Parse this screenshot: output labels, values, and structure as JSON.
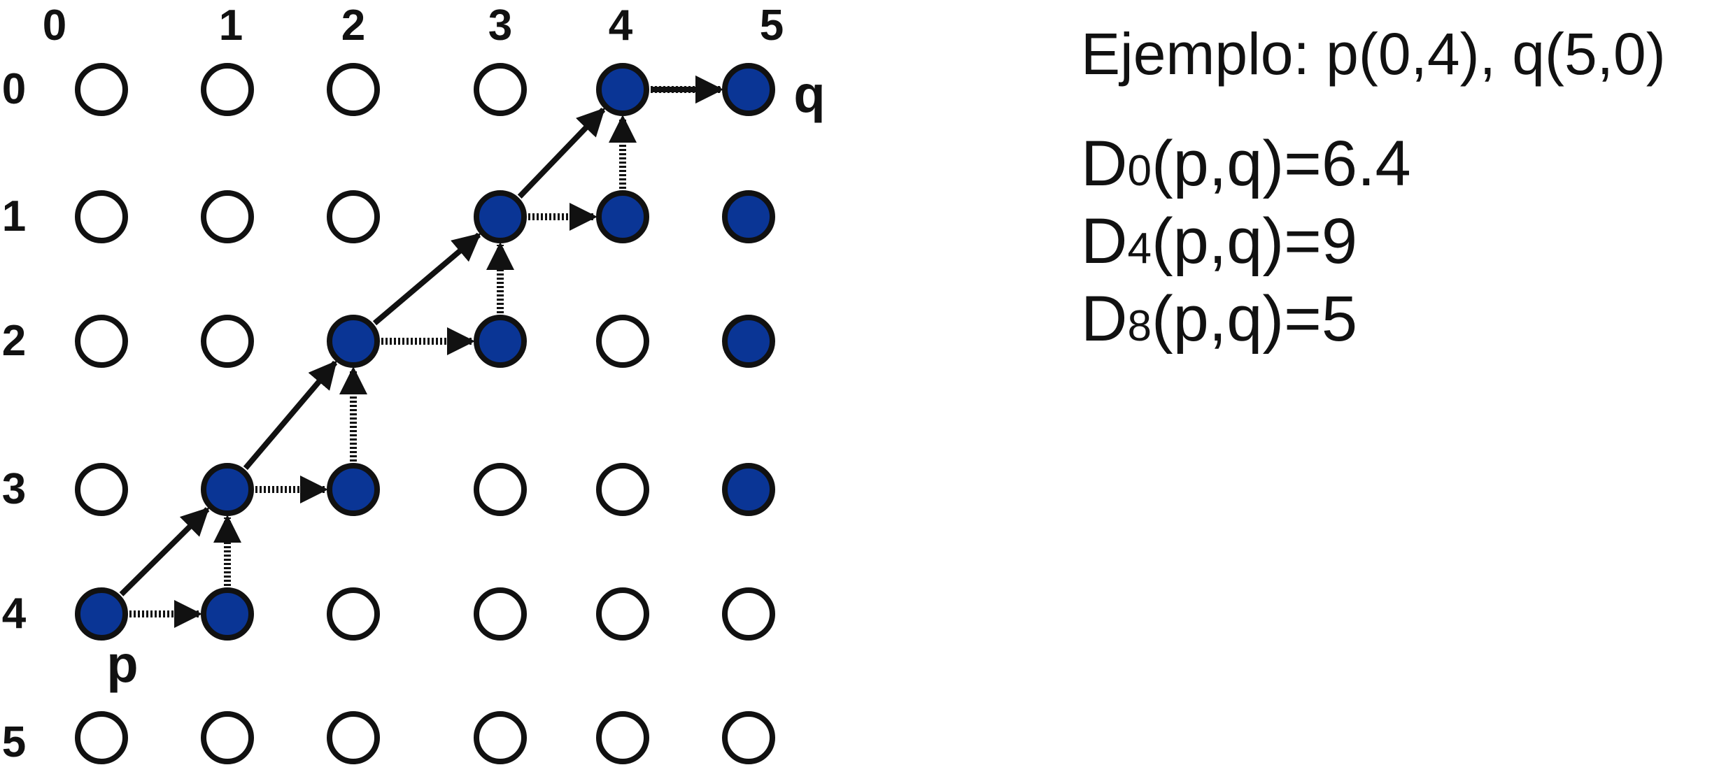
{
  "colors": {
    "filled": "#0a3595",
    "stroke": "#111111",
    "empty": "#ffffff"
  },
  "grid": {
    "column_labels": [
      "0",
      "1",
      "2",
      "3",
      "4",
      "5"
    ],
    "row_labels": [
      "0",
      "1",
      "2",
      "3",
      "4",
      "5"
    ],
    "filled_cells": [
      {
        "row": 0,
        "col": 4
      },
      {
        "row": 0,
        "col": 5
      },
      {
        "row": 1,
        "col": 3
      },
      {
        "row": 1,
        "col": 4
      },
      {
        "row": 1,
        "col": 5
      },
      {
        "row": 2,
        "col": 2
      },
      {
        "row": 2,
        "col": 3
      },
      {
        "row": 2,
        "col": 5
      },
      {
        "row": 3,
        "col": 1
      },
      {
        "row": 3,
        "col": 2
      },
      {
        "row": 3,
        "col": 5
      },
      {
        "row": 4,
        "col": 0
      },
      {
        "row": 4,
        "col": 1
      }
    ],
    "points": {
      "p": {
        "label": "p",
        "row": 4,
        "col": 0
      },
      "q": {
        "label": "q",
        "row": 0,
        "col": 5
      }
    }
  },
  "paths": {
    "solid": [
      [
        4,
        0
      ],
      [
        3,
        1
      ],
      [
        2,
        2
      ],
      [
        1,
        3
      ],
      [
        0,
        4
      ],
      [
        0,
        5
      ]
    ],
    "dotted": [
      [
        4,
        0
      ],
      [
        4,
        1
      ],
      [
        3,
        1
      ],
      [
        3,
        2
      ],
      [
        2,
        2
      ],
      [
        2,
        3
      ],
      [
        1,
        3
      ],
      [
        1,
        4
      ],
      [
        0,
        4
      ],
      [
        0,
        5
      ]
    ]
  },
  "info": {
    "example": "Ejemplo: p(0,4), q(5,0)",
    "distances": [
      {
        "prefix": "D",
        "sub": "0",
        "rest": "(p,q)=6.4"
      },
      {
        "prefix": "D",
        "sub": "4",
        "rest": "(p,q)=9"
      },
      {
        "prefix": "D",
        "sub": "8",
        "rest": "(p,q)=5"
      }
    ]
  }
}
